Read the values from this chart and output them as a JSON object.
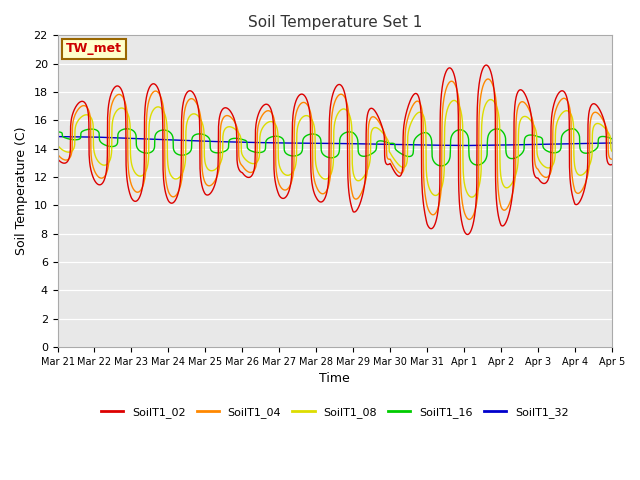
{
  "title": "Soil Temperature Set 1",
  "xlabel": "Time",
  "ylabel": "Soil Temperature (C)",
  "ylim": [
    0,
    22
  ],
  "yticks": [
    0,
    2,
    4,
    6,
    8,
    10,
    12,
    14,
    16,
    18,
    20,
    22
  ],
  "series_colors": {
    "SoilT1_02": "#dd0000",
    "SoilT1_04": "#ff8800",
    "SoilT1_08": "#dddd00",
    "SoilT1_16": "#00cc00",
    "SoilT1_32": "#0000cc"
  },
  "series_order": [
    "SoilT1_32",
    "SoilT1_16",
    "SoilT1_08",
    "SoilT1_04",
    "SoilT1_02"
  ],
  "xtick_labels": [
    "Mar 21",
    "Mar 22",
    "Mar 23",
    "Mar 24",
    "Mar 25",
    "Mar 26",
    "Mar 27",
    "Mar 28",
    "Mar 29",
    "Mar 30",
    "Mar 31",
    "Apr 1",
    "Apr 2",
    "Apr 3",
    "Apr 4",
    "Apr 5"
  ],
  "annotation_text": "TW_met",
  "annotation_color": "#cc0000",
  "annotation_bg": "#ffffcc",
  "annotation_border": "#996600",
  "plot_bg": "#e8e8e8",
  "line_width": 1.0,
  "amplitudes": {
    "SoilT1_02": [
      1.5,
      3.2,
      4.2,
      4.2,
      3.6,
      2.0,
      3.6,
      3.8,
      4.8,
      1.1,
      5.5,
      6.0,
      5.8,
      2.5,
      4.5,
      1.5
    ],
    "SoilT1_04": [
      1.3,
      2.7,
      3.5,
      3.8,
      3.0,
      1.6,
      3.0,
      3.2,
      4.0,
      0.9,
      4.5,
      5.0,
      4.8,
      2.0,
      3.8,
      1.2
    ],
    "SoilT1_08": [
      0.8,
      1.8,
      2.4,
      2.6,
      2.0,
      1.0,
      2.0,
      2.2,
      2.8,
      0.6,
      3.2,
      3.5,
      3.3,
      1.4,
      2.6,
      0.8
    ],
    "SoilT1_16": [
      0.2,
      0.5,
      0.8,
      0.9,
      0.7,
      0.4,
      0.7,
      0.8,
      1.0,
      0.2,
      1.2,
      1.3,
      1.2,
      0.5,
      1.0,
      0.3
    ],
    "SoilT1_32": [
      0.0,
      0.0,
      0.0,
      0.0,
      0.0,
      0.0,
      0.0,
      0.0,
      0.0,
      0.0,
      0.0,
      0.0,
      0.0,
      0.0,
      0.0,
      0.0
    ]
  },
  "mean_temps": {
    "SoilT1_02": [
      14.7,
      14.8,
      14.5,
      14.3,
      14.2,
      14.2,
      14.1,
      14.15,
      14.1,
      14.0,
      13.9,
      13.9,
      14.1,
      14.3,
      14.35,
      14.3
    ],
    "SoilT1_04": [
      14.75,
      14.8,
      14.5,
      14.3,
      14.2,
      14.2,
      14.1,
      14.15,
      14.1,
      14.05,
      13.9,
      13.95,
      14.1,
      14.3,
      14.35,
      14.3
    ],
    "SoilT1_08": [
      14.8,
      14.85,
      14.55,
      14.35,
      14.25,
      14.22,
      14.15,
      14.2,
      14.15,
      14.1,
      13.95,
      14.0,
      14.15,
      14.32,
      14.4,
      14.35
    ],
    "SoilT1_16": [
      15.0,
      14.9,
      14.6,
      14.4,
      14.3,
      14.28,
      14.2,
      14.25,
      14.2,
      14.18,
      14.0,
      14.05,
      14.2,
      14.38,
      14.45,
      14.42
    ],
    "SoilT1_32": [
      14.85,
      14.82,
      14.72,
      14.62,
      14.52,
      14.45,
      14.4,
      14.38,
      14.35,
      14.3,
      14.25,
      14.22,
      14.25,
      14.3,
      14.35,
      14.4
    ]
  },
  "phase_shifts": {
    "SoilT1_02": 0.0,
    "SoilT1_04": 0.05,
    "SoilT1_08": 0.12,
    "SoilT1_16": 0.28,
    "SoilT1_32": 0.0
  },
  "peak_sharpness": 4.0
}
